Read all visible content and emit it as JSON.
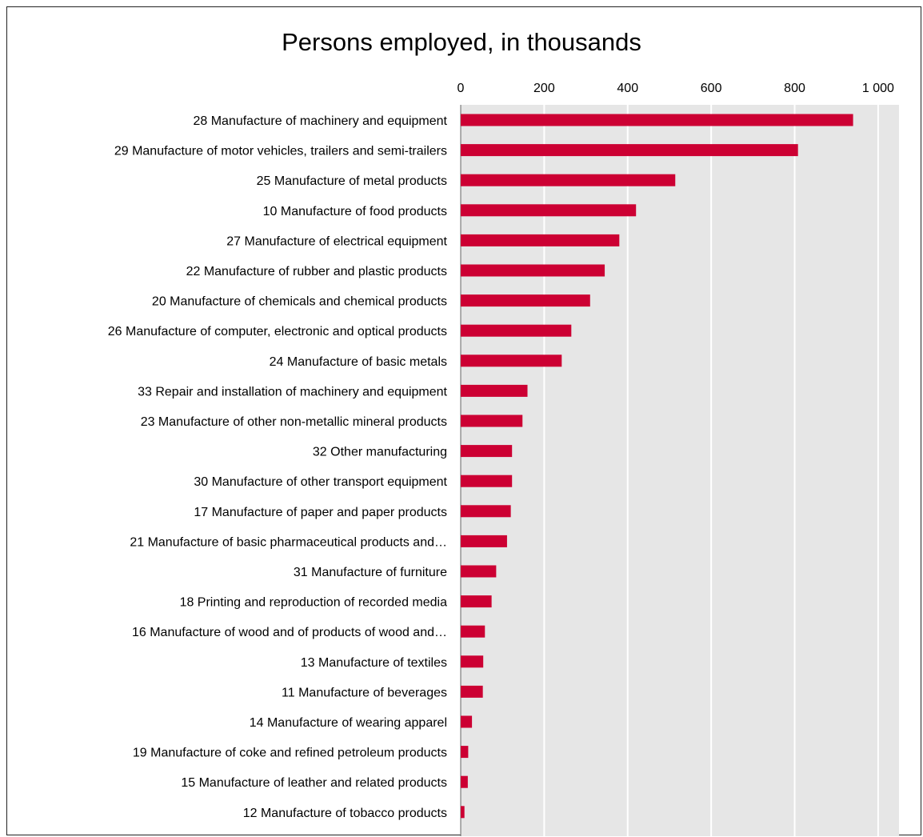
{
  "chart_data": {
    "type": "bar",
    "orientation": "horizontal",
    "title": "Persons employed, in thousands",
    "xlabel": "",
    "ylabel": "",
    "xlim": [
      0,
      1050
    ],
    "ticks": [
      0,
      200,
      400,
      600,
      800,
      1000
    ],
    "tick_labels": [
      "0",
      "200",
      "400",
      "600",
      "800",
      "1 000"
    ],
    "tick_position": "top",
    "grid": true,
    "bar_color": "#cc0033",
    "plot_bg": "#e6e6e6",
    "grid_color": "#ffffff",
    "categories": [
      "28  Manufacture of machinery and equipment",
      "29  Manufacture of motor vehicles, trailers and semi-trailers",
      "25  Manufacture of metal products",
      "10  Manufacture of food products",
      "27  Manufacture of electrical equipment",
      "22  Manufacture of rubber and plastic products",
      "20  Manufacture of chemicals and chemical products",
      "26  Manufacture of computer, electronic and optical products",
      "24  Manufacture of basic metals",
      "33  Repair and installation of machinery and equipment",
      "23  Manufacture of other non-metallic mineral products",
      "32  Other manufacturing",
      "30  Manufacture of other transport equipment",
      "17  Manufacture of paper and paper products",
      "21  Manufacture of basic pharmaceutical products and…",
      "31  Manufacture of furniture",
      "18  Printing and reproduction of recorded media",
      "16  Manufacture of wood and of products of wood and…",
      "13  Manufacture of textiles",
      "11  Manufacture of beverages",
      "14  Manufacture of wearing apparel",
      "19  Manufacture of coke and refined petroleum products",
      "15  Manufacture of leather and related products",
      "12  Manufacture of tobacco products"
    ],
    "values": [
      940,
      808,
      514,
      420,
      380,
      345,
      310,
      265,
      242,
      160,
      148,
      123,
      123,
      120,
      111,
      85,
      74,
      58,
      54,
      53,
      27,
      18,
      17,
      9
    ]
  }
}
